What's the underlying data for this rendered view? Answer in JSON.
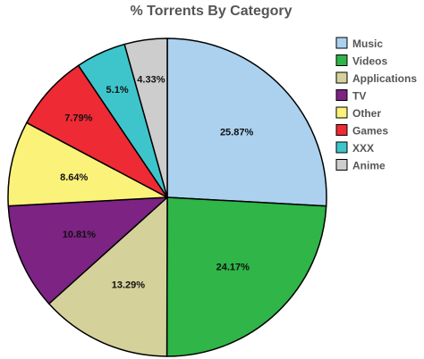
{
  "chart_data": {
    "type": "pie",
    "title": "% Torrents By Category",
    "legend_position": "right",
    "slices": [
      {
        "name": "Music",
        "value": 25.87,
        "label": "25.87%",
        "color": "#abd1ef"
      },
      {
        "name": "Videos",
        "value": 24.17,
        "label": "24.17%",
        "color": "#2fb548"
      },
      {
        "name": "Applications",
        "value": 13.29,
        "label": "13.29%",
        "color": "#d4d19b"
      },
      {
        "name": "TV",
        "value": 10.81,
        "label": "10.81%",
        "color": "#7c2383"
      },
      {
        "name": "Other",
        "value": 8.64,
        "label": "8.64%",
        "color": "#fbf27a"
      },
      {
        "name": "Games",
        "value": 7.79,
        "label": "7.79%",
        "color": "#ee2a35"
      },
      {
        "name": "XXX",
        "value": 5.1,
        "label": "5.1%",
        "color": "#3ec5cb"
      },
      {
        "name": "Anime",
        "value": 4.33,
        "label": "4.33%",
        "color": "#cdcdcd"
      }
    ]
  }
}
